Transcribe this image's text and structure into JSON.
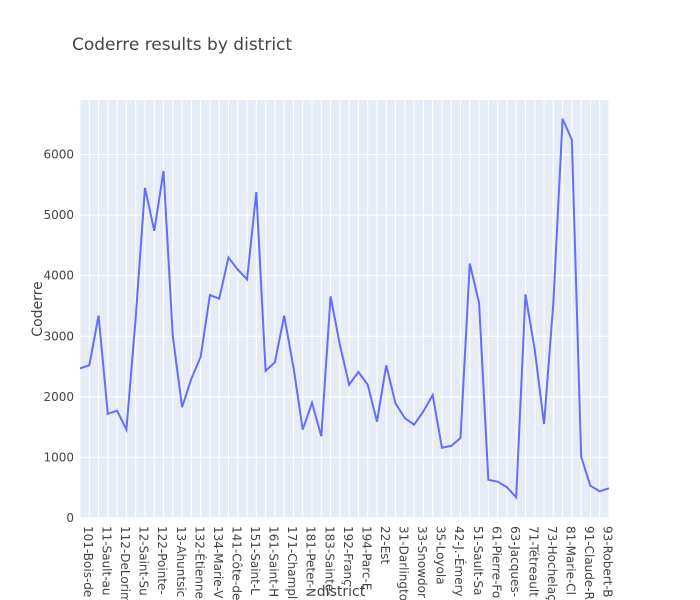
{
  "chart_data": {
    "type": "line",
    "title": "Coderre results by district",
    "xlabel": "district",
    "ylabel": "Coderre",
    "ylim": [
      0,
      6900
    ],
    "y_ticks": [
      0,
      1000,
      2000,
      3000,
      4000,
      5000,
      6000
    ],
    "x_tick_labels": [
      "101-Bois-de",
      "11-Sault-au",
      "112-DeLorim",
      "12-Saint-Su",
      "122-Pointe-",
      "13-Ahuntsic",
      "132-Étienne",
      "134-Marie-V",
      "141-Côte-de",
      "151-Saint-L",
      "161-Saint-H",
      "171-Champl",
      "181-Peter-N",
      "183-Sainte-",
      "192-Franç",
      "194-Parc-E",
      "22-Est",
      "31-Darlingto",
      "33-Snowdor",
      "35-Loyola",
      "42-J.-Émery",
      "51-Sault-Sa",
      "61-Pierre-Fo",
      "63-Jacques-",
      "71-Tétreault",
      "73-Hochelaç",
      "81-Marie-Cl",
      "91-Claude-R",
      "93-Robert-B"
    ],
    "series": [
      {
        "color": "#636efa",
        "values": [
          2470,
          2520,
          3340,
          1720,
          1770,
          1460,
          3300,
          5450,
          4740,
          5730,
          3000,
          1830,
          2300,
          2660,
          3680,
          3620,
          4300,
          4100,
          3940,
          5380,
          2430,
          2570,
          3340,
          2490,
          1460,
          1900,
          1350,
          3660,
          2860,
          2200,
          2410,
          2200,
          1590,
          2520,
          1890,
          1650,
          1540,
          1760,
          2030,
          1160,
          1190,
          1320,
          4200,
          3550,
          630,
          600,
          510,
          340,
          3690,
          2780,
          1550,
          3540,
          6590,
          6240,
          1010,
          530,
          440,
          490
        ]
      }
    ],
    "grid": true,
    "plot_background": "#e5ecf6",
    "grid_color": "#ffffff"
  }
}
